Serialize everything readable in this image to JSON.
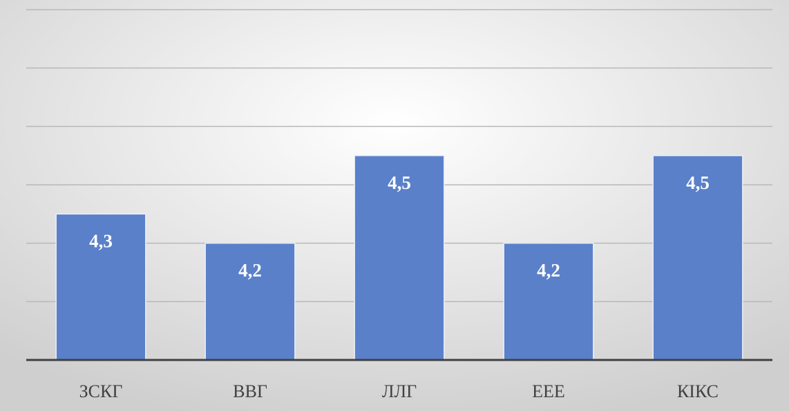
{
  "chart_data": {
    "type": "bar",
    "categories": [
      "ЗСКГ",
      "ВВГ",
      "ЛЛГ",
      "ЕЕЕ",
      "КІКС"
    ],
    "values": [
      4.3,
      4.2,
      4.5,
      4.2,
      4.5
    ],
    "value_labels": [
      "4,3",
      "4,2",
      "4,5",
      "4,2",
      "4,5"
    ],
    "color": "#5a80c9",
    "ylim": [
      3.8,
      5.0
    ],
    "yticks": [
      4.0,
      4.2,
      4.4,
      4.6,
      4.8,
      5.0
    ],
    "grid": true
  }
}
